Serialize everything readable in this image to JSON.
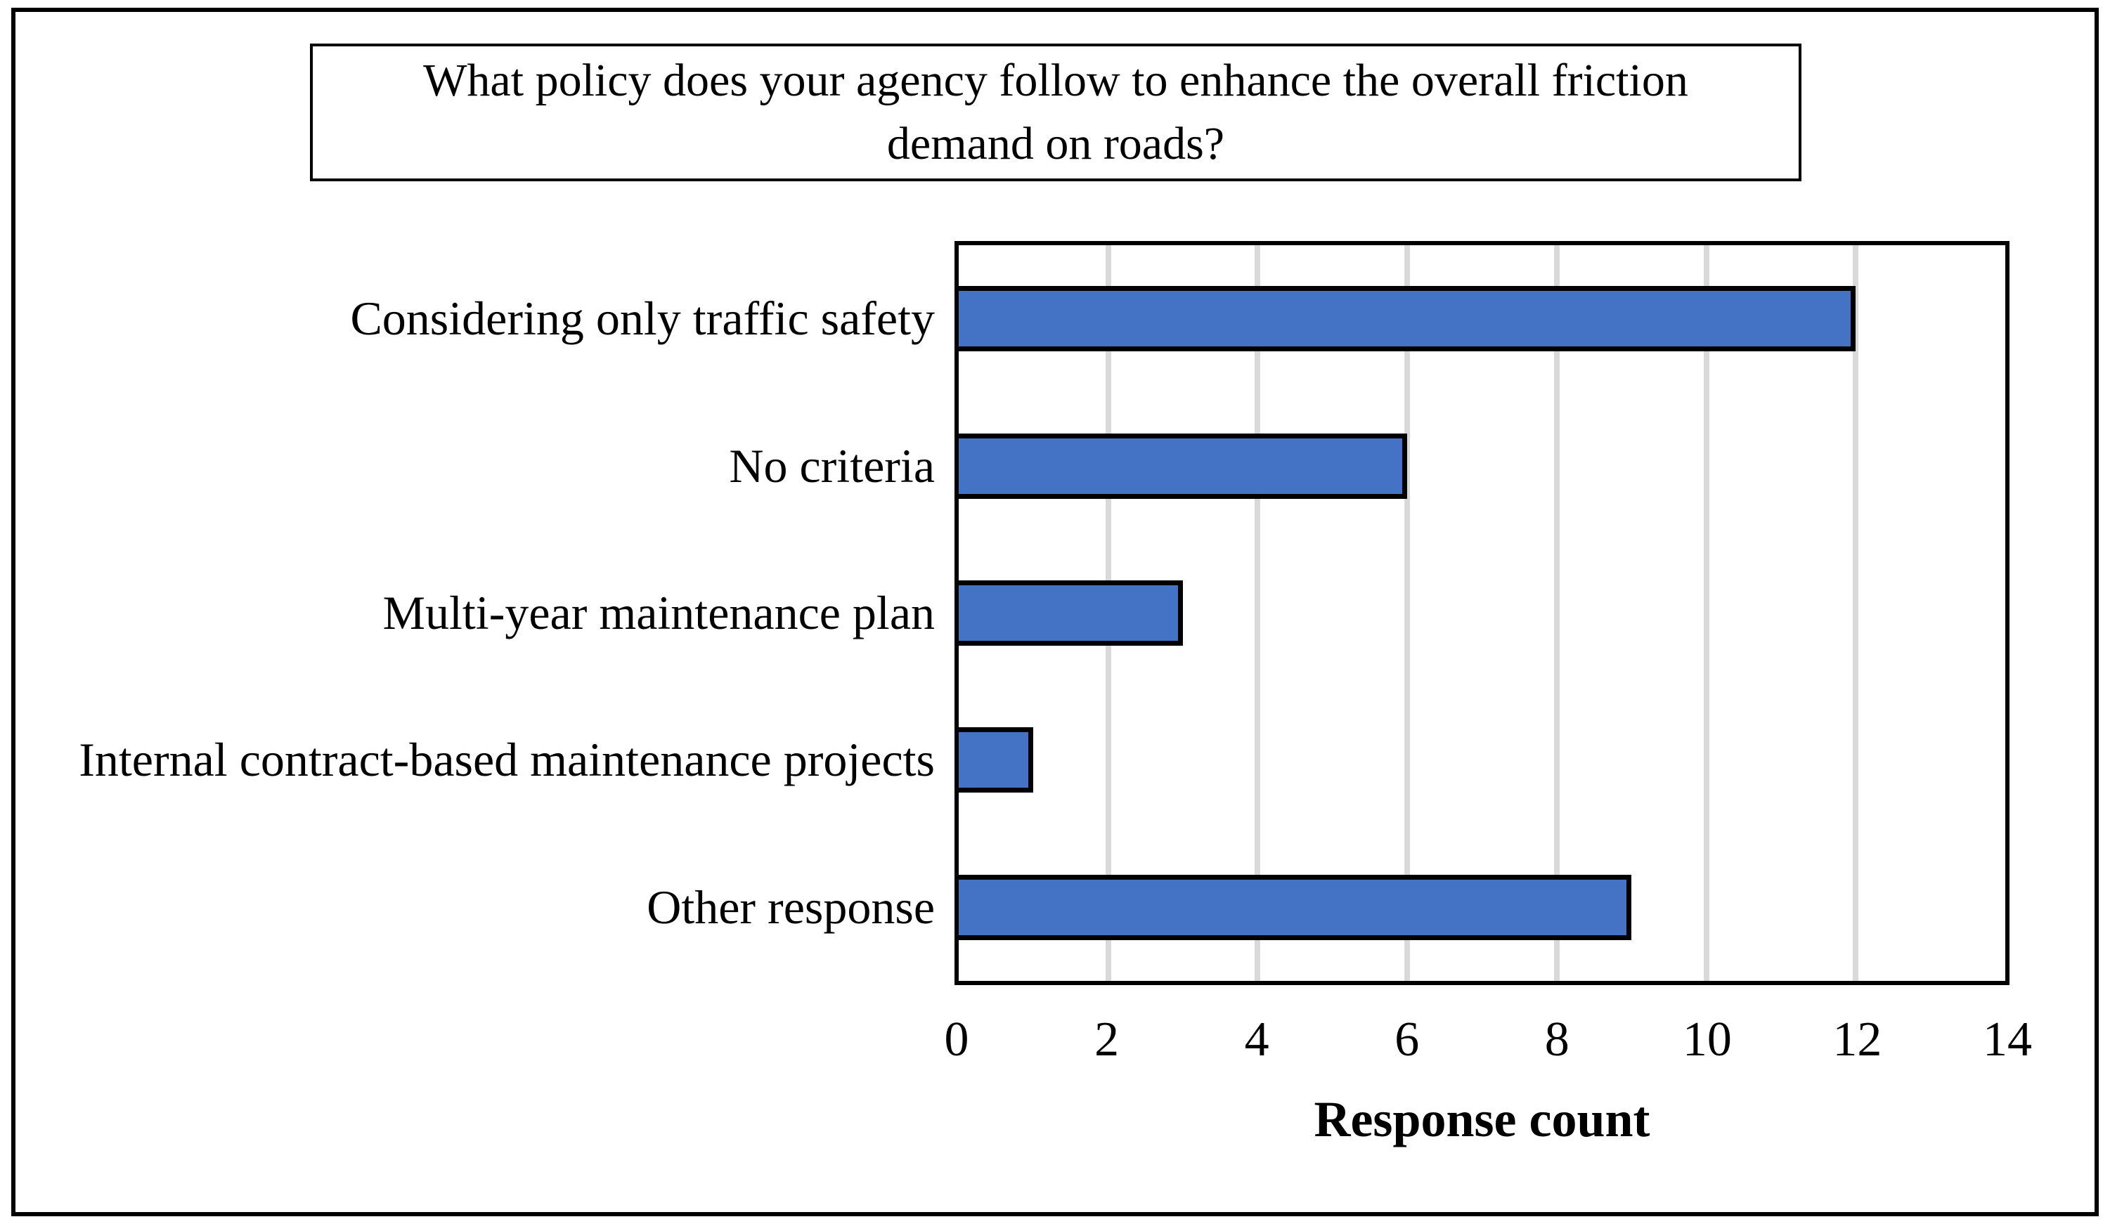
{
  "figure": {
    "background": "#ffffff",
    "frame_color": "#000000"
  },
  "chart_data": {
    "type": "bar",
    "orientation": "horizontal",
    "title": "What policy does your agency follow to enhance the overall friction demand on roads?",
    "title_lines": [
      "What policy does your agency follow to enhance the overall friction",
      "demand on roads?"
    ],
    "categories": [
      "Considering only traffic safety",
      "No criteria",
      "Multi-year maintenance plan",
      "Internal contract-based maintenance projects",
      "Other response"
    ],
    "values": [
      12,
      6,
      3,
      1,
      9
    ],
    "xlabel": "Response count",
    "xlim": [
      0,
      14
    ],
    "xticks": [
      0,
      2,
      4,
      6,
      8,
      10,
      12,
      14
    ],
    "gridline_ticks": [
      2,
      4,
      6,
      8,
      10,
      12
    ],
    "grid": "vertical-gridlines-on",
    "legend": "none",
    "bar_color": "#4472c4",
    "bar_border_color": "#000000",
    "gridline_color": "#d9d9d9",
    "axis_color": "#000000"
  }
}
